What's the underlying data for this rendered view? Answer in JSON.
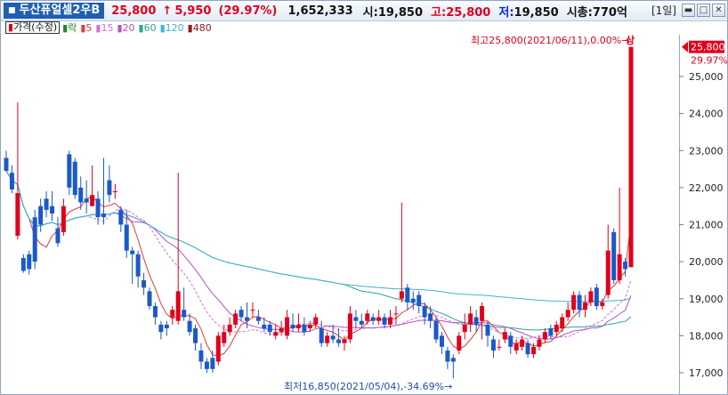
{
  "header": {
    "stock_name": "두산퓨얼셀2우B",
    "price": "25,800",
    "change_arrow": "↑",
    "change": "5,950",
    "change_rate": "(29.97%)",
    "volume": "1,652,333",
    "open_label": "시:",
    "open": "19,850",
    "high_label": "고:",
    "high": "25,800",
    "low_label": "저:",
    "low": "19,850",
    "mcap_label": "시총:",
    "mcap": "770억",
    "period": "[1일]"
  },
  "colors": {
    "up": "#e0001b",
    "down": "#1b59c9",
    "ma5": "#e23a3a",
    "ma15": "#d66fd0",
    "ma20": "#b84fc8",
    "ma60": "#2aa59a",
    "ma120": "#3db5ca",
    "ma480": "#8b1a1a"
  },
  "legend": {
    "price": "가격(수정)",
    "items": [
      {
        "label": "락",
        "color": "#1a8a1a"
      },
      {
        "label": "5",
        "color": "#e23a3a"
      },
      {
        "label": "15",
        "color": "#d66fd0"
      },
      {
        "label": "20",
        "color": "#b84fc8"
      },
      {
        "label": "60",
        "color": "#2aa59a"
      },
      {
        "label": "120",
        "color": "#3db5ca"
      },
      {
        "label": "480",
        "color": "#8b1a1a"
      }
    ]
  },
  "chart_data": {
    "type": "candlestick",
    "y_ticks": [
      17000,
      18000,
      19000,
      20000,
      21000,
      22000,
      23000,
      24000,
      25000
    ],
    "y_tick_labels": [
      "17,000",
      "18,000",
      "19,000",
      "20,000",
      "21,000",
      "22,000",
      "23,000",
      "24,000",
      "25,000"
    ],
    "ylim": [
      16550,
      26700
    ],
    "current_price": 25800,
    "current_label": "25,800",
    "current_rate": "29.97%",
    "high_annotation": "최고25,800(2021/06/11),0.00%→",
    "high_annotation_icon": "상",
    "low_annotation": "최저16,850(2021/05/04),-34.69%→",
    "candles": [
      [
        22800,
        22450,
        23000,
        22500
      ],
      [
        22400,
        21950,
        22600,
        21850
      ],
      [
        20700,
        21850,
        24300,
        20600
      ],
      [
        20100,
        19750,
        20200,
        19700
      ],
      [
        20200,
        19800,
        20300,
        19650
      ],
      [
        21200,
        20000,
        21400,
        19800
      ],
      [
        21500,
        21000,
        21700,
        20800
      ],
      [
        21700,
        21400,
        21900,
        21200
      ],
      [
        21500,
        21300,
        21900,
        21100
      ],
      [
        20900,
        20500,
        21200,
        20400
      ],
      [
        20800,
        21500,
        21700,
        20700
      ],
      [
        22900,
        22000,
        23000,
        21800
      ],
      [
        22700,
        21800,
        22800,
        21700
      ],
      [
        22000,
        21600,
        22300,
        21400
      ],
      [
        21700,
        21600,
        22200,
        21300
      ],
      [
        21500,
        21800,
        22600,
        21500
      ],
      [
        21700,
        21200,
        21900,
        21000
      ],
      [
        21300,
        21200,
        22800,
        21000
      ],
      [
        22200,
        21800,
        22600,
        21600
      ],
      [
        21900,
        21900,
        22100,
        21700
      ],
      [
        21400,
        21000,
        21500,
        20800
      ],
      [
        21000,
        20300,
        21400,
        20100
      ],
      [
        20300,
        20200,
        20400,
        19400
      ],
      [
        20200,
        19600,
        20300,
        19300
      ],
      [
        19500,
        19300,
        19700,
        19100
      ],
      [
        19200,
        18800,
        19300,
        18700
      ],
      [
        18800,
        18500,
        18900,
        18300
      ],
      [
        18300,
        18100,
        18400,
        17900
      ],
      [
        18300,
        18200,
        18400,
        18000
      ],
      [
        18500,
        18700,
        18800,
        18300
      ],
      [
        18400,
        19200,
        22400,
        18300
      ],
      [
        18700,
        18500,
        19300,
        18400
      ],
      [
        18400,
        18100,
        18600,
        18000
      ],
      [
        18200,
        17800,
        18300,
        17600
      ],
      [
        17600,
        17300,
        17800,
        17100
      ],
      [
        17300,
        17100,
        17400,
        17000
      ],
      [
        17400,
        17100,
        17600,
        17000
      ],
      [
        17300,
        18000,
        18100,
        17200
      ],
      [
        17800,
        18100,
        18300,
        17700
      ],
      [
        18100,
        18300,
        18500,
        18000
      ],
      [
        18300,
        18600,
        18700,
        18200
      ],
      [
        18700,
        18500,
        18800,
        18400
      ],
      [
        18500,
        18400,
        18900,
        18200
      ],
      [
        18700,
        18700,
        18900,
        18500
      ],
      [
        18500,
        18400,
        18700,
        18300
      ],
      [
        18300,
        18200,
        18500,
        18100
      ],
      [
        18300,
        18100,
        18400,
        18000
      ],
      [
        18000,
        18100,
        18300,
        17900
      ],
      [
        18100,
        18200,
        18400,
        18000
      ],
      [
        18000,
        18500,
        18700,
        17900
      ],
      [
        18300,
        18200,
        18600,
        18100
      ],
      [
        18200,
        18300,
        18600,
        18100
      ],
      [
        18300,
        18100,
        18500,
        18000
      ],
      [
        18200,
        18300,
        18400,
        18100
      ],
      [
        18300,
        18500,
        18600,
        18200
      ],
      [
        18200,
        17800,
        18400,
        17700
      ],
      [
        17800,
        18000,
        18100,
        17700
      ],
      [
        18000,
        17900,
        18300,
        17800
      ],
      [
        17900,
        17800,
        18200,
        17700
      ],
      [
        17800,
        17900,
        18000,
        17600
      ],
      [
        17900,
        18600,
        18800,
        17800
      ],
      [
        18500,
        18400,
        18700,
        18200
      ],
      [
        18400,
        18300,
        18600,
        18200
      ],
      [
        18400,
        18600,
        18700,
        18300
      ],
      [
        18500,
        18400,
        18600,
        18300
      ],
      [
        18400,
        18500,
        18700,
        18300
      ],
      [
        18500,
        18300,
        18600,
        18200
      ],
      [
        18300,
        18500,
        18700,
        18200
      ],
      [
        18600,
        18600,
        18800,
        18300
      ],
      [
        19000,
        19200,
        21600,
        18900
      ],
      [
        19300,
        18900,
        19400,
        18700
      ],
      [
        19000,
        18900,
        19200,
        18700
      ],
      [
        19100,
        18800,
        19200,
        18600
      ],
      [
        18800,
        18500,
        18900,
        18300
      ],
      [
        18600,
        18400,
        18800,
        18200
      ],
      [
        18400,
        17900,
        18500,
        17800
      ],
      [
        18000,
        17700,
        18100,
        17500
      ],
      [
        17600,
        17300,
        17700,
        17100
      ],
      [
        17400,
        17300,
        17500,
        16850
      ],
      [
        17600,
        18000,
        18100,
        17500
      ],
      [
        18100,
        18300,
        18600,
        17900
      ],
      [
        18300,
        18600,
        18800,
        18100
      ],
      [
        18500,
        18300,
        18700,
        18100
      ],
      [
        18400,
        18800,
        18900,
        17900
      ],
      [
        18300,
        18000,
        18400,
        17700
      ],
      [
        17900,
        17600,
        18000,
        17400
      ],
      [
        17700,
        17700,
        17900,
        17600
      ],
      [
        17900,
        18100,
        18200,
        17800
      ],
      [
        18000,
        17700,
        18100,
        17500
      ],
      [
        17600,
        17800,
        17900,
        17500
      ],
      [
        17700,
        17900,
        18000,
        17600
      ],
      [
        17800,
        17500,
        17900,
        17400
      ],
      [
        17500,
        17700,
        17800,
        17400
      ],
      [
        17700,
        17900,
        18000,
        17600
      ],
      [
        17900,
        18100,
        18200,
        17800
      ],
      [
        18200,
        18000,
        18300,
        17900
      ],
      [
        18100,
        18300,
        18400,
        18000
      ],
      [
        18200,
        18500,
        18600,
        18100
      ],
      [
        18500,
        18700,
        18900,
        18400
      ],
      [
        18700,
        19100,
        19200,
        18600
      ],
      [
        19100,
        18700,
        19200,
        18500
      ],
      [
        18700,
        18900,
        19100,
        18500
      ],
      [
        18900,
        19200,
        19300,
        18800
      ],
      [
        19300,
        18800,
        19400,
        18700
      ],
      [
        18800,
        18900,
        19000,
        18700
      ],
      [
        19100,
        20300,
        21000,
        19000
      ],
      [
        20800,
        19500,
        20900,
        19400
      ],
      [
        19500,
        20200,
        22000,
        19400
      ],
      [
        20000,
        19800,
        20100,
        19600
      ],
      [
        19850,
        25800,
        25800,
        19850
      ]
    ]
  }
}
